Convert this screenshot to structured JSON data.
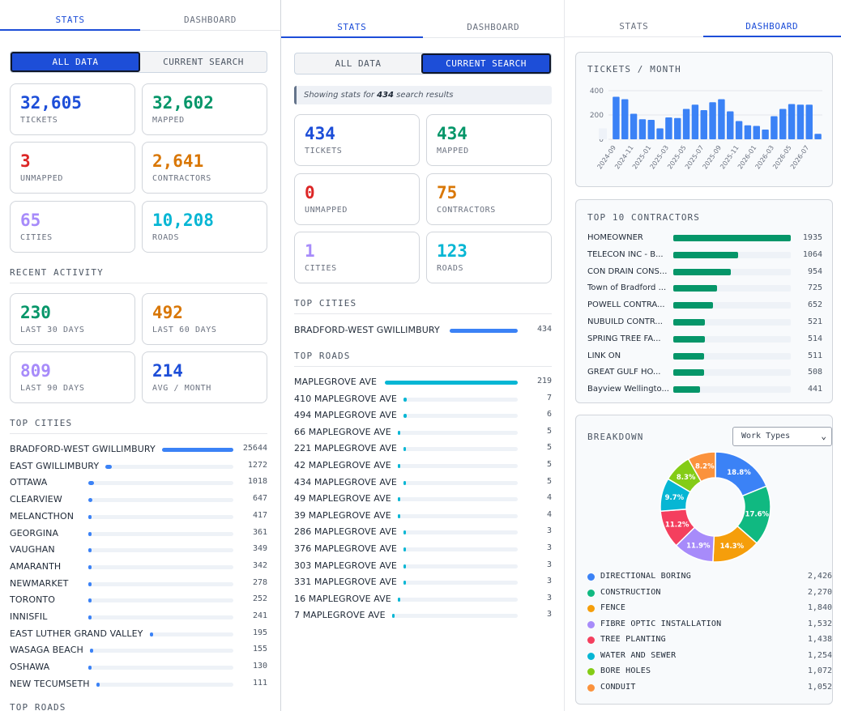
{
  "panel1": {
    "tabs": [
      "STATS",
      "DASHBOARD"
    ],
    "toggle": [
      "ALL DATA",
      "CURRENT SEARCH"
    ],
    "cards": [
      {
        "value": "32,605",
        "label": "TICKETS",
        "color": "#1d4ed8"
      },
      {
        "value": "32,602",
        "label": "MAPPED",
        "color": "#059669"
      },
      {
        "value": "3",
        "label": "UNMAPPED",
        "color": "#dc2626"
      },
      {
        "value": "2,641",
        "label": "CONTRACTORS",
        "color": "#d97706"
      },
      {
        "value": "65",
        "label": "CITIES",
        "color": "#a78bfa"
      },
      {
        "value": "10,208",
        "label": "ROADS",
        "color": "#06b6d4"
      }
    ],
    "recent_title": "RECENT ACTIVITY",
    "recent": [
      {
        "value": "230",
        "label": "LAST 30 DAYS",
        "color": "#059669"
      },
      {
        "value": "492",
        "label": "LAST 60 DAYS",
        "color": "#d97706"
      },
      {
        "value": "809",
        "label": "LAST 90 DAYS",
        "color": "#a78bfa"
      },
      {
        "value": "214",
        "label": "AVG / MONTH",
        "color": "#1d4ed8"
      }
    ],
    "cities_title": "TOP CITIES",
    "cities": [
      {
        "name": "BRADFORD-WEST GWILLIMBURY",
        "value": 25644
      },
      {
        "name": "EAST GWILLIMBURY",
        "value": 1272
      },
      {
        "name": "OTTAWA",
        "value": 1018
      },
      {
        "name": "CLEARVIEW",
        "value": 647
      },
      {
        "name": "MELANCTHON",
        "value": 417
      },
      {
        "name": "GEORGINA",
        "value": 361
      },
      {
        "name": "VAUGHAN",
        "value": 349
      },
      {
        "name": "AMARANTH",
        "value": 342
      },
      {
        "name": "NEWMARKET",
        "value": 278
      },
      {
        "name": "TORONTO",
        "value": 252
      },
      {
        "name": "INNISFIL",
        "value": 241
      },
      {
        "name": "EAST LUTHER GRAND VALLEY",
        "value": 195
      },
      {
        "name": "WASAGA BEACH",
        "value": 155
      },
      {
        "name": "OSHAWA",
        "value": 130
      },
      {
        "name": "NEW TECUMSETH",
        "value": 111
      }
    ],
    "roads_title": "TOP ROADS",
    "bar_color": "#3b82f6"
  },
  "panel2": {
    "tabs": [
      "STATS",
      "DASHBOARD"
    ],
    "toggle": [
      "ALL DATA",
      "CURRENT SEARCH"
    ],
    "info_prefix": "Showing stats for ",
    "info_count": "434",
    "info_suffix": " search results",
    "cards": [
      {
        "value": "434",
        "label": "TICKETS",
        "color": "#1d4ed8"
      },
      {
        "value": "434",
        "label": "MAPPED",
        "color": "#059669"
      },
      {
        "value": "0",
        "label": "UNMAPPED",
        "color": "#dc2626"
      },
      {
        "value": "75",
        "label": "CONTRACTORS",
        "color": "#d97706"
      },
      {
        "value": "1",
        "label": "CITIES",
        "color": "#a78bfa"
      },
      {
        "value": "123",
        "label": "ROADS",
        "color": "#06b6d4"
      }
    ],
    "cities_title": "TOP CITIES",
    "cities": [
      {
        "name": "BRADFORD-WEST GWILLIMBURY",
        "value": 434
      }
    ],
    "roads_title": "TOP ROADS",
    "roads": [
      {
        "name": "MAPLEGROVE AVE",
        "value": 219
      },
      {
        "name": "410 MAPLEGROVE AVE",
        "value": 7
      },
      {
        "name": "494 MAPLEGROVE AVE",
        "value": 6
      },
      {
        "name": "66 MAPLEGROVE AVE",
        "value": 5
      },
      {
        "name": "221 MAPLEGROVE AVE",
        "value": 5
      },
      {
        "name": "42 MAPLEGROVE AVE",
        "value": 5
      },
      {
        "name": "434 MAPLEGROVE AVE",
        "value": 5
      },
      {
        "name": "49 MAPLEGROVE AVE",
        "value": 4
      },
      {
        "name": "39 MAPLEGROVE AVE",
        "value": 4
      },
      {
        "name": "286 MAPLEGROVE AVE",
        "value": 3
      },
      {
        "name": "376 MAPLEGROVE AVE",
        "value": 3
      },
      {
        "name": "303 MAPLEGROVE AVE",
        "value": 3
      },
      {
        "name": "331 MAPLEGROVE AVE",
        "value": 3
      },
      {
        "name": "16 MAPLEGROVE AVE",
        "value": 3
      },
      {
        "name": "7 MAPLEGROVE AVE",
        "value": 3
      }
    ],
    "city_bar_color": "#3b82f6",
    "road_bar_color": "#06b6d4"
  },
  "panel3": {
    "tabs": [
      "STATS",
      "DASHBOARD"
    ],
    "tickets_title": "TICKETS / MONTH",
    "contractors_title": "TOP 10 CONTRACTORS",
    "contractors": [
      {
        "name": "HOMEOWNER",
        "value": 1935
      },
      {
        "name": "TELECON INC - B...",
        "value": 1064
      },
      {
        "name": "CON DRAIN CONS...",
        "value": 954
      },
      {
        "name": "Town of Bradford ...",
        "value": 725
      },
      {
        "name": "POWELL CONTRA...",
        "value": 652
      },
      {
        "name": "NUBUILD CONTR...",
        "value": 521
      },
      {
        "name": "SPRING TREE FA...",
        "value": 514
      },
      {
        "name": "LINK ON",
        "value": 511
      },
      {
        "name": "GREAT GULF HO...",
        "value": 508
      },
      {
        "name": "Bayview Wellingto...",
        "value": 441
      }
    ],
    "breakdown_title": "BREAKDOWN",
    "select_value": "Work Types",
    "legend": [
      {
        "name": "DIRECTIONAL BORING",
        "value": "2,426",
        "color": "#3b82f6"
      },
      {
        "name": "CONSTRUCTION",
        "value": "2,270",
        "color": "#10b981"
      },
      {
        "name": "FENCE",
        "value": "1,840",
        "color": "#f59e0b"
      },
      {
        "name": "FIBRE OPTIC INSTALLATION",
        "value": "1,532",
        "color": "#a78bfa"
      },
      {
        "name": "TREE PLANTING",
        "value": "1,438",
        "color": "#f43f5e"
      },
      {
        "name": "WATER AND SEWER",
        "value": "1,254",
        "color": "#06b6d4"
      },
      {
        "name": "BORE HOLES",
        "value": "1,072",
        "color": "#84cc16"
      },
      {
        "name": "CONDUIT",
        "value": "1,052",
        "color": "#fb923c"
      }
    ]
  },
  "chart_data": [
    {
      "type": "bar",
      "title": "TICKETS / MONTH",
      "categories": [
        "2024-09",
        "2024-10",
        "2024-11",
        "2024-12",
        "2025-01",
        "2025-02",
        "2025-03",
        "2025-04",
        "2025-05",
        "2025-06",
        "2025-07",
        "2025-08",
        "2025-09",
        "2025-10",
        "2025-11",
        "2025-12",
        "2026-01",
        "2026-02",
        "2026-03",
        "2026-04",
        "2026-05",
        "2026-06",
        "2026-07",
        "2026-08"
      ],
      "tick_labels": [
        "2024-09",
        "2024-11",
        "2025-01",
        "2025-03",
        "2025-05",
        "2025-07",
        "2025-09",
        "2025-11",
        "2026-01",
        "2026-03",
        "2026-05",
        "2026-07"
      ],
      "values": [
        350,
        330,
        210,
        165,
        160,
        90,
        180,
        175,
        250,
        285,
        240,
        305,
        330,
        230,
        150,
        115,
        110,
        80,
        190,
        250,
        290,
        285,
        285,
        45
      ],
      "ylim": [
        0,
        400
      ],
      "yticks": [
        0,
        200,
        400
      ],
      "grid": true,
      "color": "#3b82f6"
    },
    {
      "type": "pie",
      "title": "BREAKDOWN",
      "labels": [
        "DIRECTIONAL BORING",
        "CONSTRUCTION",
        "FENCE",
        "FIBRE OPTIC INSTALLATION",
        "TREE PLANTING",
        "WATER AND SEWER",
        "BORE HOLES",
        "CONDUIT"
      ],
      "values": [
        2426,
        2270,
        1840,
        1532,
        1438,
        1254,
        1072,
        1052
      ],
      "percent_labels": [
        "18.8%",
        "17.6%",
        "14.3%",
        "11.9%",
        "11.2%",
        "9.7%",
        "8.3%",
        "8.2%"
      ],
      "colors": [
        "#3b82f6",
        "#10b981",
        "#f59e0b",
        "#a78bfa",
        "#f43f5e",
        "#06b6d4",
        "#84cc16",
        "#fb923c"
      ]
    }
  ]
}
